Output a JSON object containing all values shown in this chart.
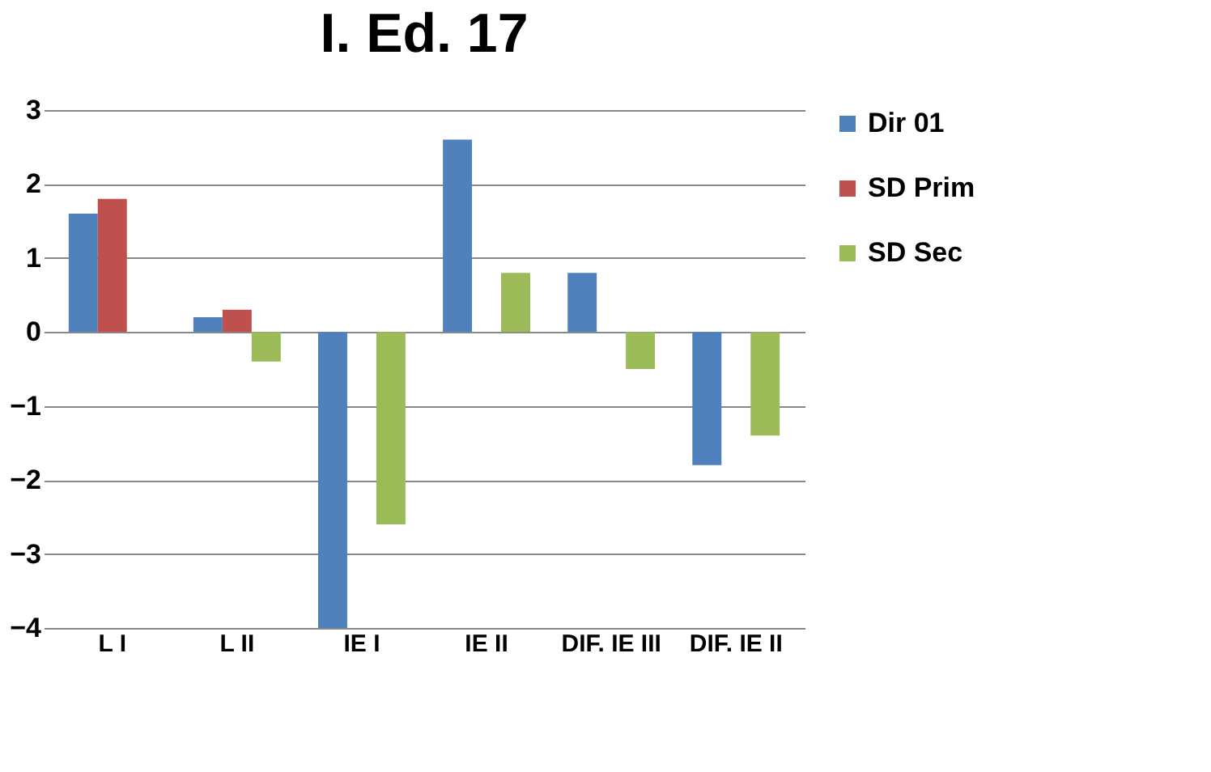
{
  "chart_data": {
    "type": "bar",
    "title": "I. Ed. 17",
    "categories": [
      "L I",
      "L II",
      "IE I",
      "IE II",
      "DIF. IE III",
      "DIF. IE II"
    ],
    "series": [
      {
        "name": "Dir 01",
        "color": "#4f81bd",
        "values": [
          1.6,
          0.2,
          -4,
          2.6,
          0.8,
          -1.8
        ]
      },
      {
        "name": "SD Prim",
        "color": "#c0504d",
        "values": [
          1.8,
          0.3,
          0,
          0,
          0,
          0
        ]
      },
      {
        "name": "SD Sec",
        "color": "#9bbb59",
        "values": [
          0,
          -0.4,
          -2.6,
          0.8,
          -0.5,
          -1.4
        ]
      }
    ],
    "ylim": [
      -4,
      3
    ],
    "yticks": [
      -4,
      -3,
      -2,
      -1,
      0,
      1,
      2,
      3
    ],
    "grid": "y",
    "legend": "right"
  }
}
